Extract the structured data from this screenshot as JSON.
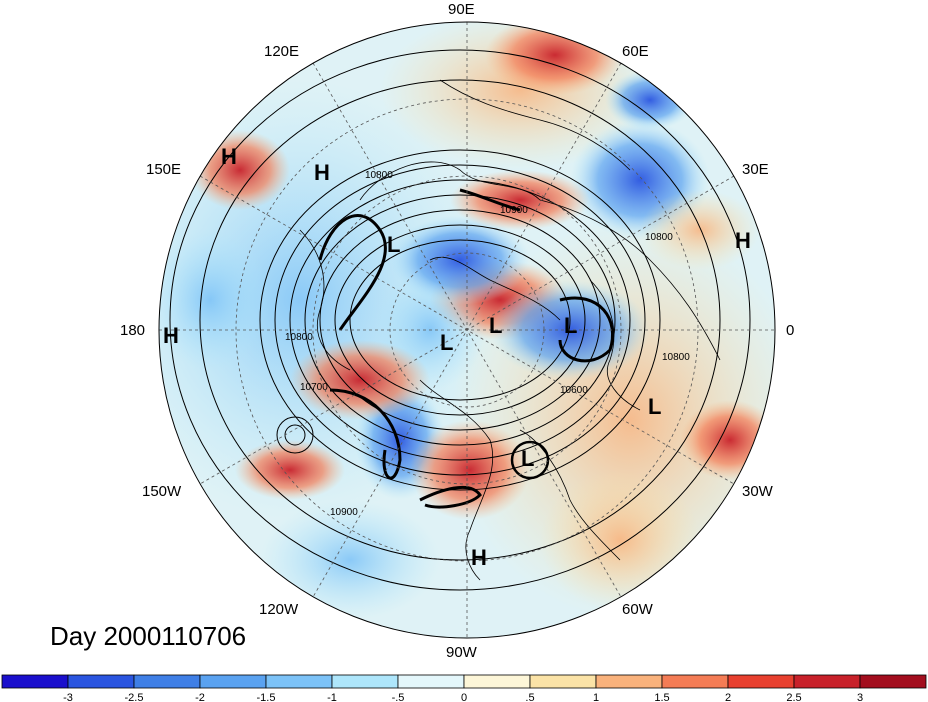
{
  "title": "Day 2000110706",
  "longitude_labels": [
    "90E",
    "60E",
    "30E",
    "0",
    "30W",
    "60W",
    "90W",
    "120W",
    "150W",
    "180",
    "150E",
    "120E"
  ],
  "pressure_centers": [
    {
      "label": "H",
      "id": "h1"
    },
    {
      "label": "H",
      "id": "h2"
    },
    {
      "label": "H",
      "id": "h3"
    },
    {
      "label": "H",
      "id": "h4"
    },
    {
      "label": "H",
      "id": "h5"
    },
    {
      "label": "L",
      "id": "l1"
    },
    {
      "label": "L",
      "id": "l2"
    },
    {
      "label": "L",
      "id": "l3"
    },
    {
      "label": "L",
      "id": "l4"
    },
    {
      "label": "L",
      "id": "l5"
    },
    {
      "label": "L",
      "id": "l6"
    }
  ],
  "contour_labels": [
    "10800",
    "10900",
    "10800",
    "10800",
    "10700",
    "10600",
    "10800",
    "10900"
  ],
  "colorbar": {
    "ticks": [
      "-3",
      "-2.5",
      "-2",
      "-1.5",
      "-1",
      "-.5",
      "0",
      ".5",
      "1",
      "1.5",
      "2",
      "2.5",
      "3"
    ],
    "colors": [
      "#1a0fcc",
      "#2a55e0",
      "#3f7fe6",
      "#5aa2f0",
      "#7cc2f7",
      "#aee6fb",
      "#e4f7fb",
      "#fdf6d8",
      "#fbe3a7",
      "#f9b27c",
      "#f47c55",
      "#e8402f",
      "#c8212a",
      "#a30e1e"
    ]
  },
  "colors": {
    "land_line": "#000000",
    "grid_line": "#555555"
  }
}
